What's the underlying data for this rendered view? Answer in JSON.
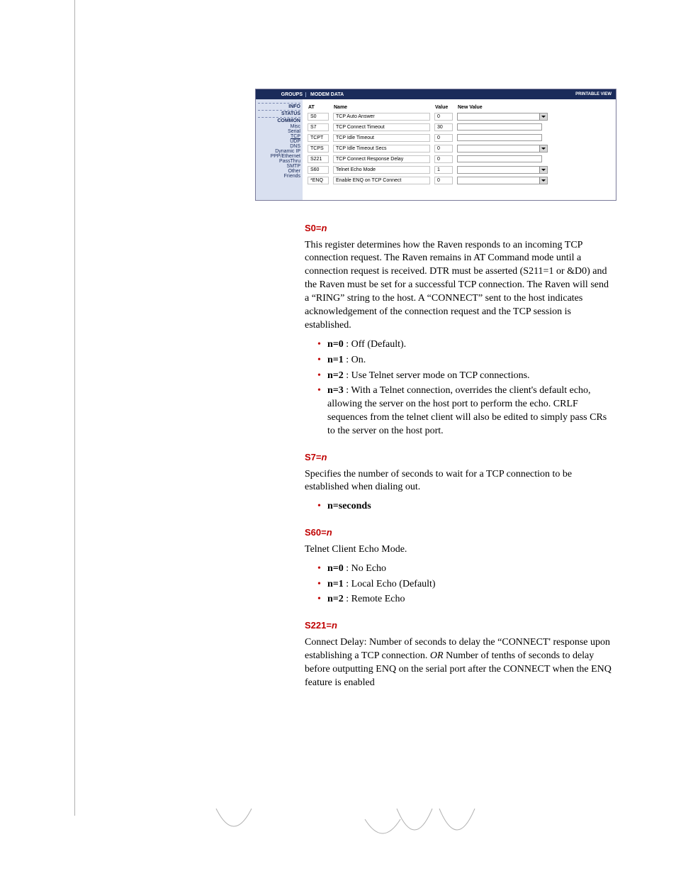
{
  "screenshot": {
    "top": {
      "groups": "GROUPS",
      "modem": "MODEM DATA",
      "printable": "PRINTABLE VIEW"
    },
    "side": {
      "info": "INFO",
      "status": "STATUS",
      "common": "COMMON",
      "subs": [
        "Misc",
        "Serial",
        "TCP",
        "UDP",
        "DNS",
        "Dynamic IP",
        "PPP/Ethernet",
        "PassThru",
        "SMTP",
        "Other",
        "Friends"
      ]
    },
    "table": {
      "headers": {
        "at": "AT",
        "name": "Name",
        "value": "Value",
        "newvalue": "New Value"
      },
      "rows": [
        {
          "at": "S0",
          "name": "TCP Auto Answer",
          "value": "0",
          "kind": "select"
        },
        {
          "at": "S7",
          "name": "TCP Connect Timeout",
          "value": "30",
          "kind": "input"
        },
        {
          "at": "TCPT",
          "name": "TCP Idle Timeout",
          "value": "0",
          "kind": "input"
        },
        {
          "at": "TCPS",
          "name": "TCP Idle Timeout Secs",
          "value": "0",
          "kind": "select"
        },
        {
          "at": "S221",
          "name": "TCP Connect Response Delay",
          "value": "0",
          "kind": "input"
        },
        {
          "at": "S60",
          "name": "Telnet Echo Mode",
          "value": "1",
          "kind": "select"
        },
        {
          "at": "*ENQ",
          "name": "Enable ENQ on TCP Connect",
          "value": "0",
          "kind": "select"
        }
      ]
    }
  },
  "doc": {
    "s0": {
      "hdr_prefix": "S0=",
      "hdr_var": "n",
      "body": "This register determines how the Raven responds to an incoming TCP connection request. The Raven remains in AT Command mode until a connection request is received. DTR must be asserted (S211=1 or &D0) and the Raven must be set for a successful TCP connection. The Raven will send a “RING” string to the host. A “CONNECT” sent to the host indicates acknowledgement of the connection request and the TCP session is established.",
      "items": [
        {
          "b": "n=0",
          "rest": " : Off (Default)."
        },
        {
          "b": "n=1",
          "rest": " : On."
        },
        {
          "b": "n=2",
          "rest": " : Use Telnet server mode on TCP connections."
        },
        {
          "b": "n=3",
          "rest": " : With a Telnet connection, overrides the client's default echo, allowing the server on the host port to perform the echo. CRLF sequences from the telnet client will also be edited to simply pass CRs to the server on the host port."
        }
      ]
    },
    "s7": {
      "hdr_prefix": "S7=",
      "hdr_var": "n",
      "body": "Specifies the number of seconds to wait for a TCP connection to be established when dialing out.",
      "items": [
        {
          "b": "n=seconds",
          "rest": ""
        }
      ]
    },
    "s60": {
      "hdr_prefix": "S60=",
      "hdr_var": "n",
      "body": "Telnet Client Echo Mode.",
      "items": [
        {
          "b": "n=0",
          "rest": " : No Echo"
        },
        {
          "b": "n=1",
          "rest": " : Local Echo (Default)"
        },
        {
          "b": "n=2",
          "rest": " : Remote Echo"
        }
      ]
    },
    "s221": {
      "hdr_prefix": "S221=",
      "hdr_var": "n",
      "body_pre": "Connect Delay: Number of seconds to delay the “CONNECT' response upon establishing a TCP connection. ",
      "body_or": "OR",
      "body_post": " Number of tenths of seconds to delay before outputting ENQ on the serial port after the CONNECT when the ENQ feature is enabled"
    }
  }
}
